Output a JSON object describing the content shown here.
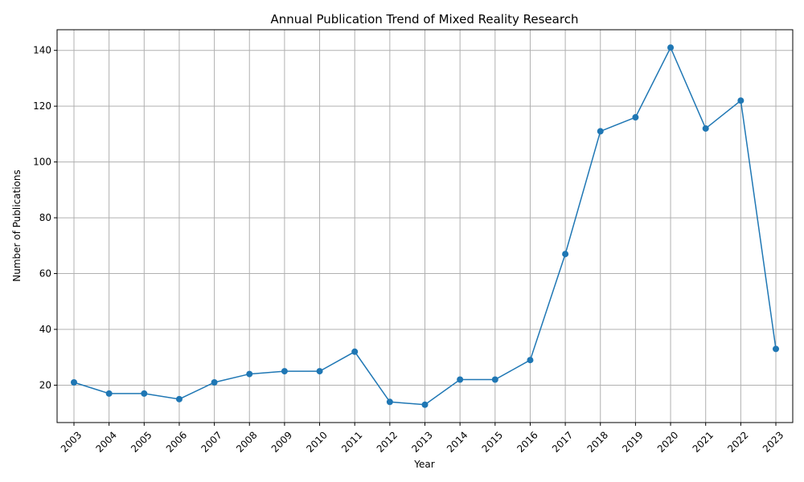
{
  "chart_data": {
    "type": "line",
    "title": "Annual Publication Trend of Mixed Reality Research",
    "xlabel": "Year",
    "ylabel": "Number of Publications",
    "x": [
      "2003",
      "2004",
      "2005",
      "2006",
      "2007",
      "2008",
      "2009",
      "2010",
      "2011",
      "2012",
      "2013",
      "2014",
      "2015",
      "2016",
      "2017",
      "2018",
      "2019",
      "2020",
      "2021",
      "2022",
      "2023"
    ],
    "values": [
      21,
      17,
      17,
      15,
      21,
      24,
      25,
      25,
      32,
      14,
      13,
      22,
      22,
      29,
      67,
      111,
      116,
      141,
      112,
      122,
      33
    ],
    "yticks": [
      20,
      40,
      60,
      80,
      100,
      120,
      140
    ],
    "ylim": [
      6.6,
      147.4
    ],
    "grid": true,
    "marker": "circle",
    "color": "#1f77b4"
  }
}
